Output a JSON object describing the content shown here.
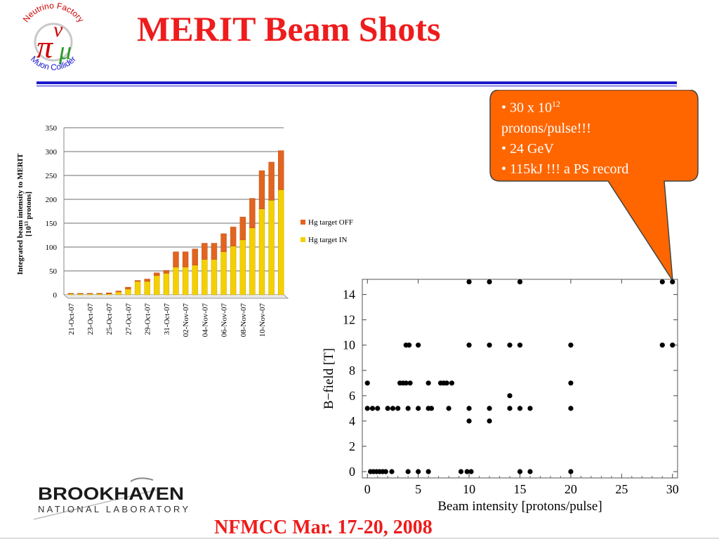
{
  "title": "MERIT Beam Shots",
  "logo": {
    "top_text": "Neutrino Factory",
    "bottom_text": "Muon Collider"
  },
  "callout": {
    "line1_prefix": "• 30 x 10",
    "line1_sup": "12",
    "line2": "protons/pulse!!!",
    "line3": "• 24 GeV",
    "line4": "• 115kJ !!! a PS record",
    "fill": "#ff6600"
  },
  "footer": "NFMCC Mar. 17-20, 2008",
  "institution": {
    "name_top": "BROOKHAVEN",
    "name_bottom": "NATIONAL LABORATORY"
  },
  "colors": {
    "title": "#ee1c1c",
    "rule": "#1a1acc",
    "series_off": "#e2641e",
    "series_in": "#f5d000"
  },
  "chart_data": [
    {
      "type": "bar",
      "stacked": true,
      "ylabel_line1": "Integrated beam intensity to MERIT",
      "ylabel_line2_prefix": "[10",
      "ylabel_line2_sup": "13",
      "ylabel_line2_suffix": " protons]",
      "ylim": [
        0,
        350
      ],
      "yticks": [
        0,
        50,
        100,
        150,
        200,
        250,
        300,
        350
      ],
      "grid": true,
      "legend_position": "right",
      "tick_labels": [
        "21-Oct-07",
        "23-Oct-07",
        "25-Oct-07",
        "27-Oct-07",
        "29-Oct-07",
        "31-Oct-07",
        "02-Nov-07",
        "04-Nov-07",
        "06-Nov-07",
        "08-Nov-07",
        "10-Nov-07"
      ],
      "series": [
        {
          "name": "Hg target OFF",
          "color": "#e2641e",
          "values": [
            1,
            1,
            1,
            1,
            2,
            2,
            4,
            2,
            5,
            6,
            6,
            32,
            32,
            34,
            34,
            34,
            38,
            40,
            48,
            62,
            80,
            80,
            82
          ]
        },
        {
          "name": "Hg target IN",
          "color": "#f5d000",
          "values": [
            2,
            2,
            2,
            2,
            2,
            6,
            12,
            28,
            28,
            40,
            45,
            58,
            58,
            62,
            74,
            74,
            90,
            102,
            115,
            140,
            180,
            198,
            220
          ]
        }
      ]
    },
    {
      "type": "scatter",
      "xlabel": "Beam intensity [protons/pulse]",
      "ylabel": "B−field [T]",
      "xlim": [
        -0.5,
        30.5
      ],
      "ylim": [
        -0.5,
        15.2
      ],
      "xticks": [
        0,
        5,
        10,
        15,
        20,
        25,
        30
      ],
      "yticks": [
        0,
        2,
        4,
        6,
        8,
        10,
        12,
        14
      ],
      "points": [
        [
          0,
          7
        ],
        [
          0,
          5
        ],
        [
          0.5,
          5
        ],
        [
          1,
          5
        ],
        [
          2,
          5
        ],
        [
          2.5,
          5
        ],
        [
          3,
          5
        ],
        [
          4,
          5
        ],
        [
          5,
          5
        ],
        [
          6,
          5
        ],
        [
          6.3,
          5
        ],
        [
          8,
          5
        ],
        [
          10,
          5
        ],
        [
          12,
          5
        ],
        [
          14,
          5
        ],
        [
          15,
          5
        ],
        [
          16,
          5
        ],
        [
          20,
          5
        ],
        [
          3.2,
          7
        ],
        [
          3.5,
          7
        ],
        [
          3.8,
          7
        ],
        [
          4.2,
          7
        ],
        [
          6,
          7
        ],
        [
          7.2,
          7
        ],
        [
          7.5,
          7
        ],
        [
          7.8,
          7
        ],
        [
          8.3,
          7
        ],
        [
          20,
          7
        ],
        [
          3.8,
          10
        ],
        [
          4.1,
          10
        ],
        [
          5,
          10
        ],
        [
          10,
          10
        ],
        [
          12,
          10
        ],
        [
          14,
          10
        ],
        [
          15,
          10
        ],
        [
          20,
          10
        ],
        [
          29,
          10
        ],
        [
          30,
          10
        ],
        [
          10,
          15
        ],
        [
          12,
          15
        ],
        [
          15,
          15
        ],
        [
          29,
          15
        ],
        [
          30,
          15
        ],
        [
          14,
          6
        ],
        [
          10,
          4
        ],
        [
          12,
          4
        ],
        [
          0.3,
          0
        ],
        [
          0.6,
          0
        ],
        [
          0.9,
          0
        ],
        [
          1.2,
          0
        ],
        [
          1.5,
          0
        ],
        [
          1.8,
          0
        ],
        [
          2.4,
          0
        ],
        [
          4,
          0
        ],
        [
          5,
          0
        ],
        [
          6,
          0
        ],
        [
          9.2,
          0
        ],
        [
          9.8,
          0
        ],
        [
          10.2,
          0
        ],
        [
          15,
          0
        ],
        [
          16,
          0
        ],
        [
          20,
          0
        ]
      ]
    }
  ]
}
